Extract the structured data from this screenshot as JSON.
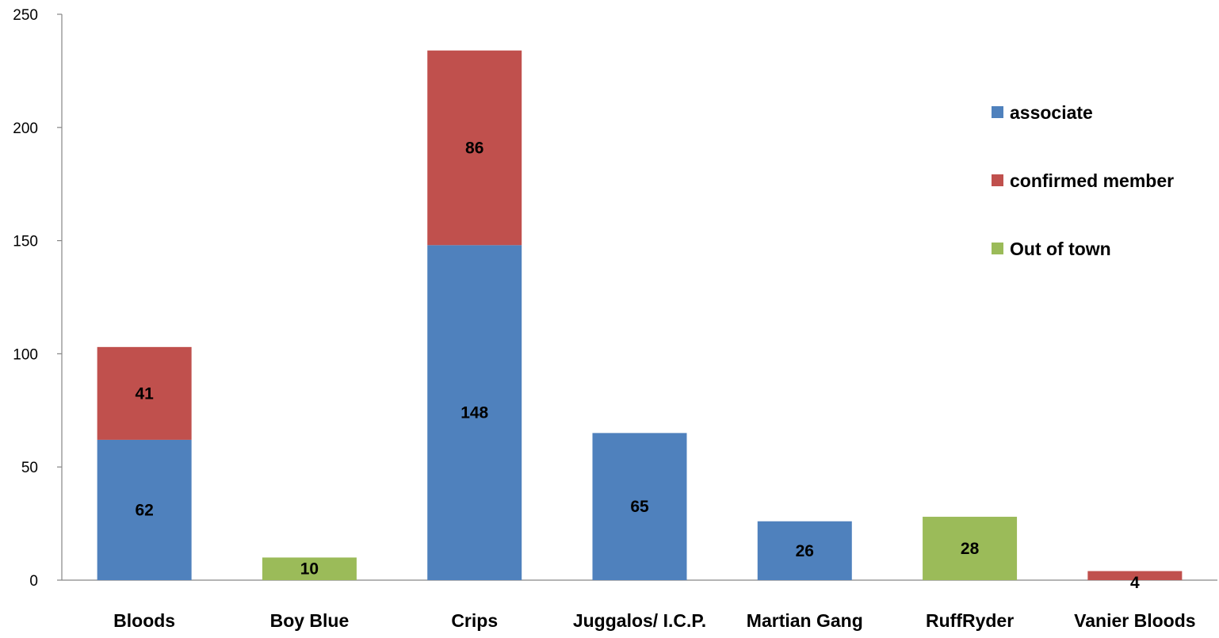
{
  "chart_data": {
    "type": "bar",
    "stacked": true,
    "categories": [
      "Bloods",
      "Boy Blue",
      "Crips",
      "Juggalos/ I.C.P.",
      "Martian Gang",
      "RuffRyder",
      "Vanier Bloods"
    ],
    "series": [
      {
        "name": "associate",
        "color": "#4F81BD",
        "values": [
          62,
          null,
          148,
          65,
          26,
          null,
          null
        ]
      },
      {
        "name": "confirmed member",
        "color": "#C0504D",
        "values": [
          41,
          null,
          86,
          null,
          null,
          null,
          4
        ]
      },
      {
        "name": "Out of town",
        "color": "#9BBB59",
        "values": [
          null,
          10,
          null,
          null,
          null,
          28,
          null
        ]
      }
    ],
    "ylim": [
      0,
      250
    ],
    "yticks": [
      0,
      50,
      100,
      150,
      200,
      250
    ],
    "grid": false,
    "legend_position": "right"
  }
}
